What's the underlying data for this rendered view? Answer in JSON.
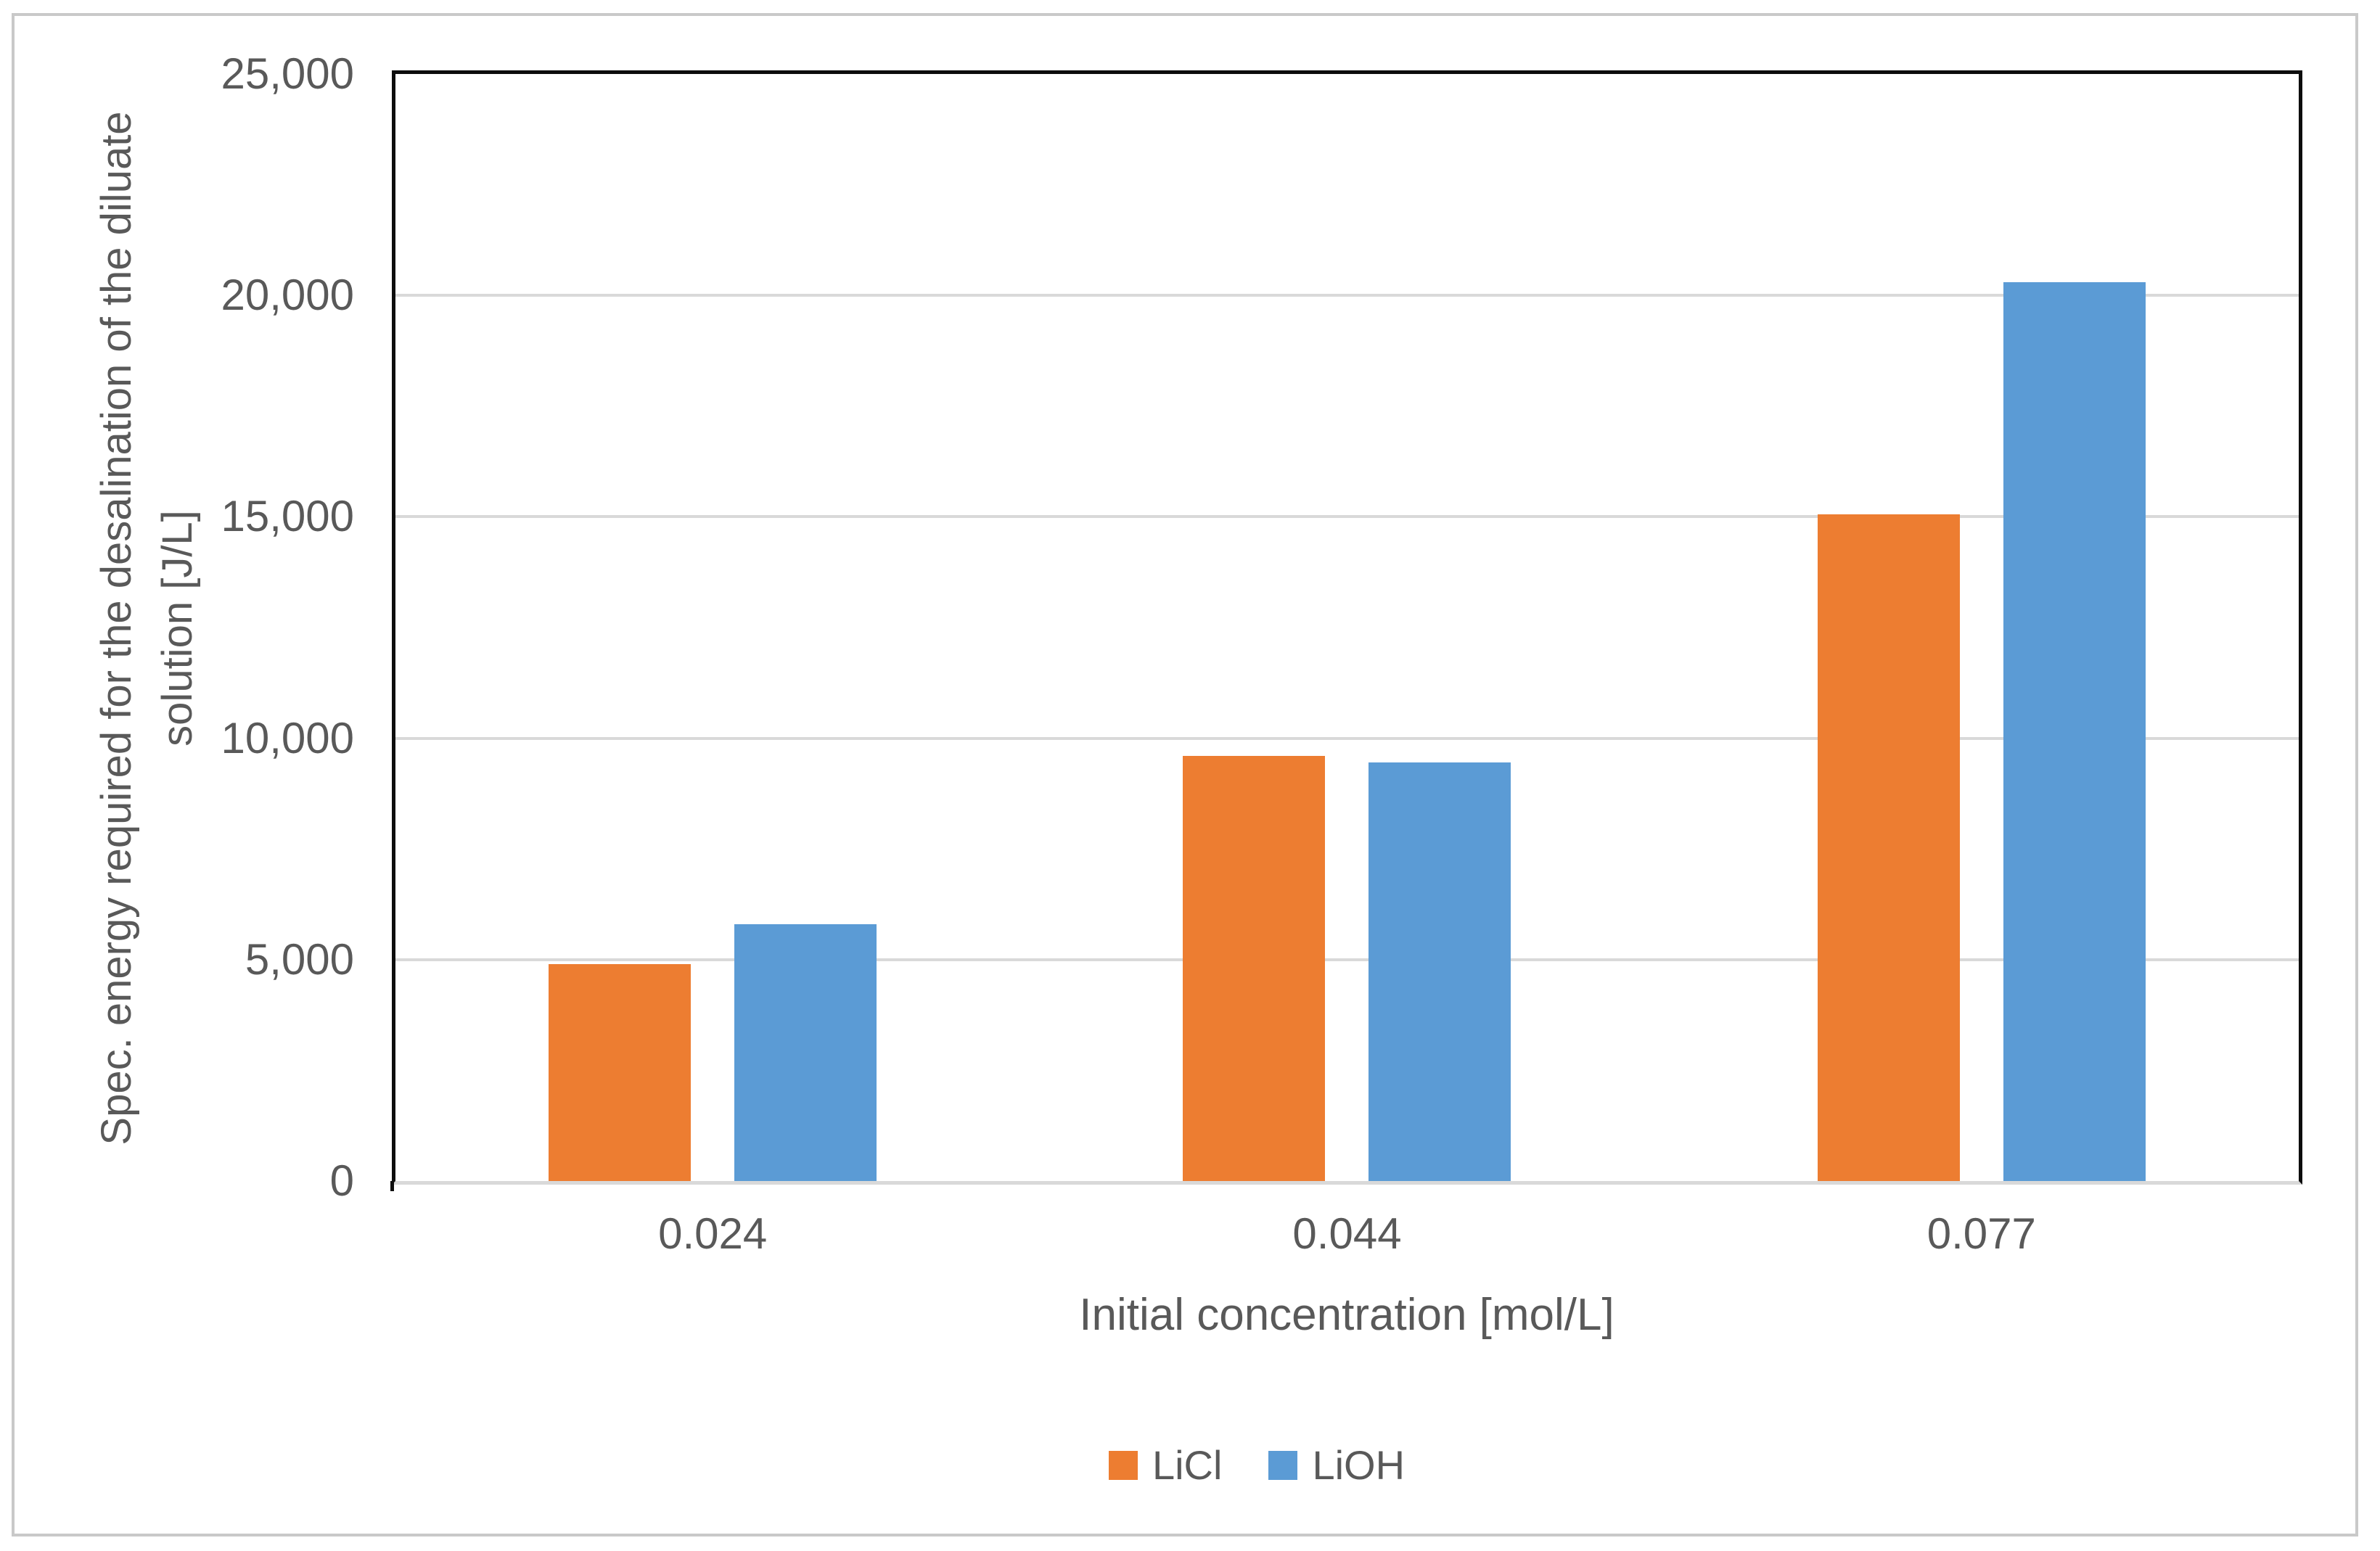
{
  "chart_data": {
    "type": "bar",
    "title": "",
    "categories": [
      "0.024",
      "0.044",
      "0.077"
    ],
    "series": [
      {
        "name": "LiCl",
        "color": "#ED7D31",
        "values": [
          4900,
          9600,
          15050
        ]
      },
      {
        "name": "LiOH",
        "color": "#5B9BD5",
        "values": [
          5800,
          9450,
          20300
        ]
      }
    ],
    "xlabel": "Initial concentration [mol/L]",
    "ylabel": "Spec. energy required for the desalination of the diluate solution [J/L]",
    "ylabel_line1": "Spec. energy required for the desalination of the diluate",
    "ylabel_line2": "solution [J/L]",
    "ylim": [
      0,
      25000
    ],
    "ytick_step": 5000,
    "yticks": [
      {
        "value": 0,
        "label": "0"
      },
      {
        "value": 5000,
        "label": "5,000"
      },
      {
        "value": 10000,
        "label": "10,000"
      },
      {
        "value": 15000,
        "label": "15,000"
      },
      {
        "value": 20000,
        "label": "20,000"
      },
      {
        "value": 25000,
        "label": "25,000"
      }
    ],
    "grid": true,
    "legend_position": "bottom",
    "colors": {
      "gridline": "#d9d9d9",
      "plot_border": "#0d0d0d",
      "axis_baseline": "#d9d9d9",
      "text": "#595959",
      "outer_frame": "#c9c9c9",
      "background": "#ffffff"
    }
  }
}
